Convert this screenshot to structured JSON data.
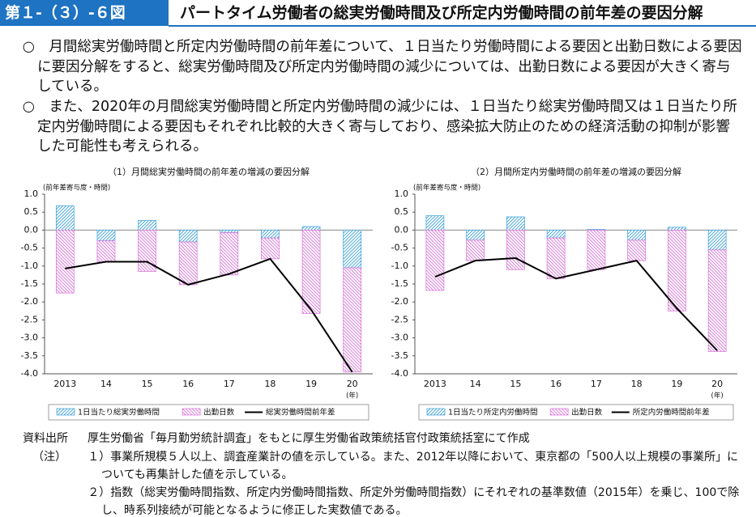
{
  "header": {
    "label": "第１-（３）-６図",
    "title": "パートタイム労働者の総実労働時間及び所定内労働時間の前年差の要因分解"
  },
  "paragraphs": [
    "○　月間総実労働時間と所定内労働時間の前年差について、１日当たり労働時間による要因と出勤日数による要因に要因分解をすると、総実労働時間及び所定内労働時間の減少については、出勤日数による要因が大きく寄与している。",
    "○　また、2020年の月間総実労働時間と所定内労働時間の減少には、１日当たり総実労働時間又は１日当たり所定内労働時間による要因もそれぞれ比較的大きく寄与しており、感染拡大防止のための経済活動の抑制が影響した可能性も考えられる。"
  ],
  "chart_data": [
    {
      "type": "bar",
      "title": "（1）月間総実労働時間の前年差の増減の要因分解",
      "y_label": "(前年差寄与度・時間)",
      "x_label": "(年)",
      "categories": [
        "2013",
        "14",
        "15",
        "16",
        "17",
        "18",
        "19",
        "20"
      ],
      "ylim": [
        -4,
        1
      ],
      "yticks": [
        {
          "value": 1,
          "label": "1.0"
        },
        {
          "value": 0.5,
          "label": "0.5"
        },
        {
          "value": 0,
          "label": "0.0"
        },
        {
          "value": -0.5,
          "label": "-0.5"
        },
        {
          "value": -1,
          "label": "-1.0"
        },
        {
          "value": -1.5,
          "label": "-1.5"
        },
        {
          "value": -2,
          "label": "-2.0"
        },
        {
          "value": -2.5,
          "label": "-2.5"
        },
        {
          "value": -3,
          "label": "-3.0"
        },
        {
          "value": -3.5,
          "label": "-3.5"
        },
        {
          "value": -4,
          "label": "-4.0"
        }
      ],
      "series": [
        {
          "name": "1日当たり総実労働時間",
          "type": "bar",
          "color": "#3a9fd8",
          "values": [
            0.68,
            -0.3,
            0.27,
            -0.33,
            -0.07,
            -0.22,
            0.1,
            -1.05
          ]
        },
        {
          "name": "出勤日数",
          "type": "bar",
          "color": "#d86fd8",
          "values": [
            -1.75,
            -0.58,
            -1.15,
            -1.19,
            -1.18,
            -0.58,
            -2.32,
            -2.9
          ]
        },
        {
          "name": "総実労働時間前年差",
          "type": "line",
          "color": "#000000",
          "values": [
            -1.07,
            -0.88,
            -0.88,
            -1.52,
            -1.22,
            -0.8,
            -2.22,
            -3.95
          ]
        }
      ]
    },
    {
      "type": "bar",
      "title": "（2）月間所定内労働時間の前年差の増減の要因分解",
      "y_label": "(前年差寄与度・時間)",
      "x_label": "(年)",
      "categories": [
        "2013",
        "14",
        "15",
        "16",
        "17",
        "18",
        "19",
        "20"
      ],
      "ylim": [
        -4,
        1
      ],
      "yticks": [
        {
          "value": 1,
          "label": "1.0"
        },
        {
          "value": 0.5,
          "label": "0.5"
        },
        {
          "value": 0,
          "label": "0.0"
        },
        {
          "value": -0.5,
          "label": "-0.5"
        },
        {
          "value": -1,
          "label": "-1.0"
        },
        {
          "value": -1.5,
          "label": "-1.5"
        },
        {
          "value": -2,
          "label": "-2.0"
        },
        {
          "value": -2.5,
          "label": "-2.5"
        },
        {
          "value": -3,
          "label": "-3.0"
        },
        {
          "value": -3.5,
          "label": "-3.5"
        },
        {
          "value": -4,
          "label": "-4.0"
        }
      ],
      "series": [
        {
          "name": "1日当たり所定内労働時間",
          "type": "bar",
          "color": "#3a9fd8",
          "values": [
            0.4,
            -0.28,
            0.37,
            -0.22,
            0.02,
            -0.28,
            0.08,
            -0.55
          ]
        },
        {
          "name": "出勤日数",
          "type": "bar",
          "color": "#d86fd8",
          "values": [
            -1.68,
            -0.57,
            -1.1,
            -1.13,
            -1.1,
            -0.57,
            -2.25,
            -2.83
          ]
        },
        {
          "name": "所定内労働時間前年差",
          "type": "line",
          "color": "#000000",
          "values": [
            -1.3,
            -0.85,
            -0.78,
            -1.35,
            -1.1,
            -0.85,
            -2.18,
            -3.35
          ]
        }
      ]
    }
  ],
  "source": {
    "label": "資料出所",
    "text": "厚生労働省「毎月勤労統計調査」をもとに厚生労働省政策統括官付政策統括室にて作成"
  },
  "notes": {
    "label": "（注）",
    "items": [
      "１）事業所規模５人以上、調査産業計の値を示している。また、2012年以降において、東京都の「500人以上規模の事業所」についても再集計した値を示している。",
      "２）指数（総実労働時間指数、所定内労働時間指数、所定外労働時間指数）にそれぞれの基準数値（2015年）を乗じ、100で除し、時系列接続が可能となるように修正した実数値である。"
    ]
  }
}
